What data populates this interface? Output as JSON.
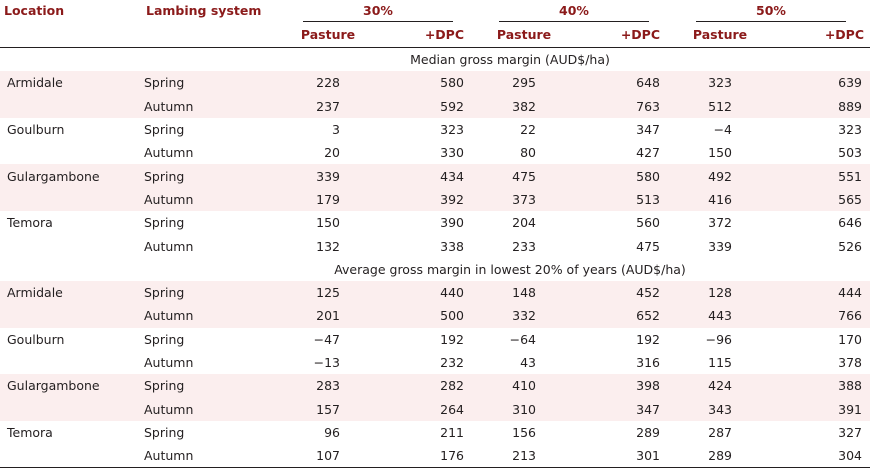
{
  "headers": {
    "location": "Location",
    "lambing_system": "Lambing system",
    "groups": [
      "30%",
      "40%",
      "50%"
    ],
    "pasture": "Pasture",
    "dpc": "+DPC"
  },
  "sections": [
    {
      "title": "Median gross margin (AUD$/ha)",
      "rows": [
        {
          "location": "Armidale",
          "system": "Spring",
          "values": [
            "228",
            "580",
            "295",
            "648",
            "323",
            "639"
          ]
        },
        {
          "location": "",
          "system": "Autumn",
          "values": [
            "237",
            "592",
            "382",
            "763",
            "512",
            "889"
          ]
        },
        {
          "location": "Goulburn",
          "system": "Spring",
          "values": [
            "3",
            "323",
            "22",
            "347",
            "−4",
            "323"
          ]
        },
        {
          "location": "",
          "system": "Autumn",
          "values": [
            "20",
            "330",
            "80",
            "427",
            "150",
            "503"
          ]
        },
        {
          "location": "Gulargambone",
          "system": "Spring",
          "values": [
            "339",
            "434",
            "475",
            "580",
            "492",
            "551"
          ]
        },
        {
          "location": "",
          "system": "Autumn",
          "values": [
            "179",
            "392",
            "373",
            "513",
            "416",
            "565"
          ]
        },
        {
          "location": "Temora",
          "system": "Spring",
          "values": [
            "150",
            "390",
            "204",
            "560",
            "372",
            "646"
          ]
        },
        {
          "location": "",
          "system": "Autumn",
          "values": [
            "132",
            "338",
            "233",
            "475",
            "339",
            "526"
          ]
        }
      ]
    },
    {
      "title": "Average gross margin in lowest 20% of years (AUD$/ha)",
      "rows": [
        {
          "location": "Armidale",
          "system": "Spring",
          "values": [
            "125",
            "440",
            "148",
            "452",
            "128",
            "444"
          ]
        },
        {
          "location": "",
          "system": "Autumn",
          "values": [
            "201",
            "500",
            "332",
            "652",
            "443",
            "766"
          ]
        },
        {
          "location": "Goulburn",
          "system": "Spring",
          "values": [
            "−47",
            "192",
            "−64",
            "192",
            "−96",
            "170"
          ]
        },
        {
          "location": "",
          "system": "Autumn",
          "values": [
            "−13",
            "232",
            "43",
            "316",
            "115",
            "378"
          ]
        },
        {
          "location": "Gulargambone",
          "system": "Spring",
          "values": [
            "283",
            "282",
            "410",
            "398",
            "424",
            "388"
          ]
        },
        {
          "location": "",
          "system": "Autumn",
          "values": [
            "157",
            "264",
            "310",
            "347",
            "343",
            "391"
          ]
        },
        {
          "location": "Temora",
          "system": "Spring",
          "values": [
            "96",
            "211",
            "156",
            "289",
            "287",
            "327"
          ]
        },
        {
          "location": "",
          "system": "Autumn",
          "values": [
            "107",
            "176",
            "213",
            "301",
            "289",
            "304"
          ]
        }
      ]
    }
  ],
  "colors": {
    "header_text": "#8b1a1a",
    "row_shade": "#fbeeee",
    "text": "#231f20"
  }
}
